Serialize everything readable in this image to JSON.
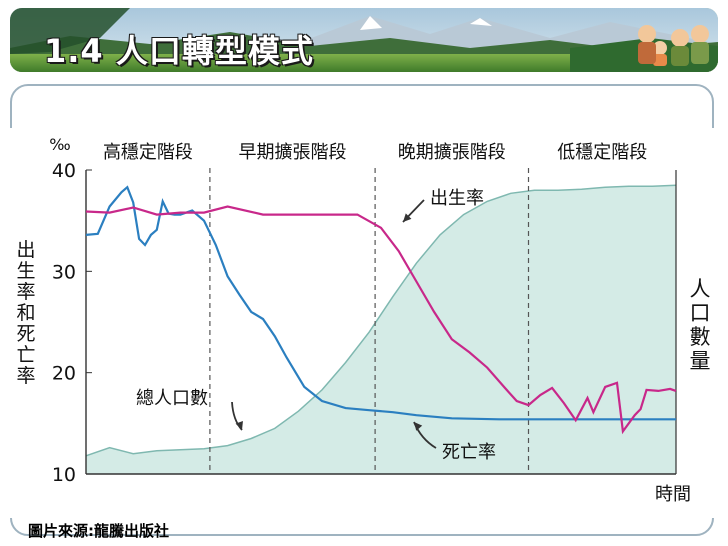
{
  "slide": {
    "title": "1.4 人口轉型模式",
    "credit": "圖片來源:龍騰出版社"
  },
  "chart_data": {
    "type": "line",
    "unit": "‰",
    "ylabel_left": "出生率和死亡率",
    "ylabel_right": "人口數量",
    "xlabel": "時間",
    "ylim": [
      10,
      40
    ],
    "yticks": [
      10,
      20,
      30,
      40
    ],
    "xlim": [
      0,
      100
    ],
    "stages": [
      {
        "name": "高穩定階段",
        "start": 0,
        "end": 21
      },
      {
        "name": "早期擴張階段",
        "start": 21,
        "end": 49
      },
      {
        "name": "晚期擴張階段",
        "start": 49,
        "end": 75
      },
      {
        "name": "低穩定階段",
        "start": 75,
        "end": 100
      }
    ],
    "series": [
      {
        "name": "出生率",
        "color": "#c8288a",
        "x": [
          0,
          4,
          8,
          12,
          16,
          20,
          24,
          30,
          36,
          42,
          46,
          50,
          53,
          56,
          59,
          62,
          65,
          68,
          71,
          73,
          75,
          77,
          79,
          81,
          83,
          85,
          86,
          88,
          90,
          91,
          93,
          94,
          95,
          97,
          99,
          100
        ],
        "y": [
          35.9,
          35.8,
          36.3,
          35.6,
          35.8,
          35.8,
          36.4,
          35.6,
          35.6,
          35.6,
          35.6,
          34.3,
          32.0,
          29.0,
          26.0,
          23.3,
          22.0,
          20.5,
          18.5,
          17.2,
          16.8,
          17.8,
          18.5,
          17.0,
          15.3,
          17.5,
          16.1,
          18.6,
          19.0,
          14.2,
          15.8,
          16.4,
          18.3,
          18.2,
          18.4,
          18.2
        ]
      },
      {
        "name": "死亡率",
        "color": "#2b7fc0",
        "x": [
          0,
          2,
          4,
          6,
          7,
          8,
          9,
          10,
          11,
          12,
          13,
          14,
          15,
          16,
          18,
          20,
          22,
          24,
          26,
          28,
          30,
          32,
          34,
          37,
          40,
          44,
          48,
          52,
          56,
          62,
          70,
          80,
          90,
          100
        ],
        "y": [
          33.6,
          33.7,
          36.4,
          37.8,
          38.3,
          36.8,
          33.2,
          32.6,
          33.6,
          34.1,
          36.9,
          35.7,
          35.6,
          35.6,
          36.0,
          35.0,
          32.6,
          29.5,
          27.7,
          26.0,
          25.3,
          23.6,
          21.5,
          18.6,
          17.2,
          16.5,
          16.3,
          16.1,
          15.8,
          15.5,
          15.4,
          15.4,
          15.4,
          15.4
        ]
      },
      {
        "name": "總人口數",
        "color": "#7fb8b0",
        "fill": "#d4ebe6",
        "x": [
          0,
          4,
          8,
          12,
          16,
          20,
          24,
          28,
          32,
          36,
          40,
          44,
          48,
          52,
          56,
          60,
          64,
          68,
          72,
          76,
          80,
          84,
          88,
          92,
          96,
          100
        ],
        "y": [
          11.8,
          12.6,
          12.0,
          12.3,
          12.4,
          12.5,
          12.8,
          13.5,
          14.5,
          16.2,
          18.3,
          21.0,
          24.0,
          27.5,
          30.8,
          33.6,
          35.6,
          36.9,
          37.7,
          38.0,
          38.0,
          38.1,
          38.3,
          38.4,
          38.4,
          38.5
        ]
      }
    ],
    "annotations": [
      {
        "text": "出生率",
        "series": "出生率"
      },
      {
        "text": "死亡率",
        "series": "死亡率"
      },
      {
        "text": "總人口數",
        "series": "總人口數"
      }
    ]
  }
}
